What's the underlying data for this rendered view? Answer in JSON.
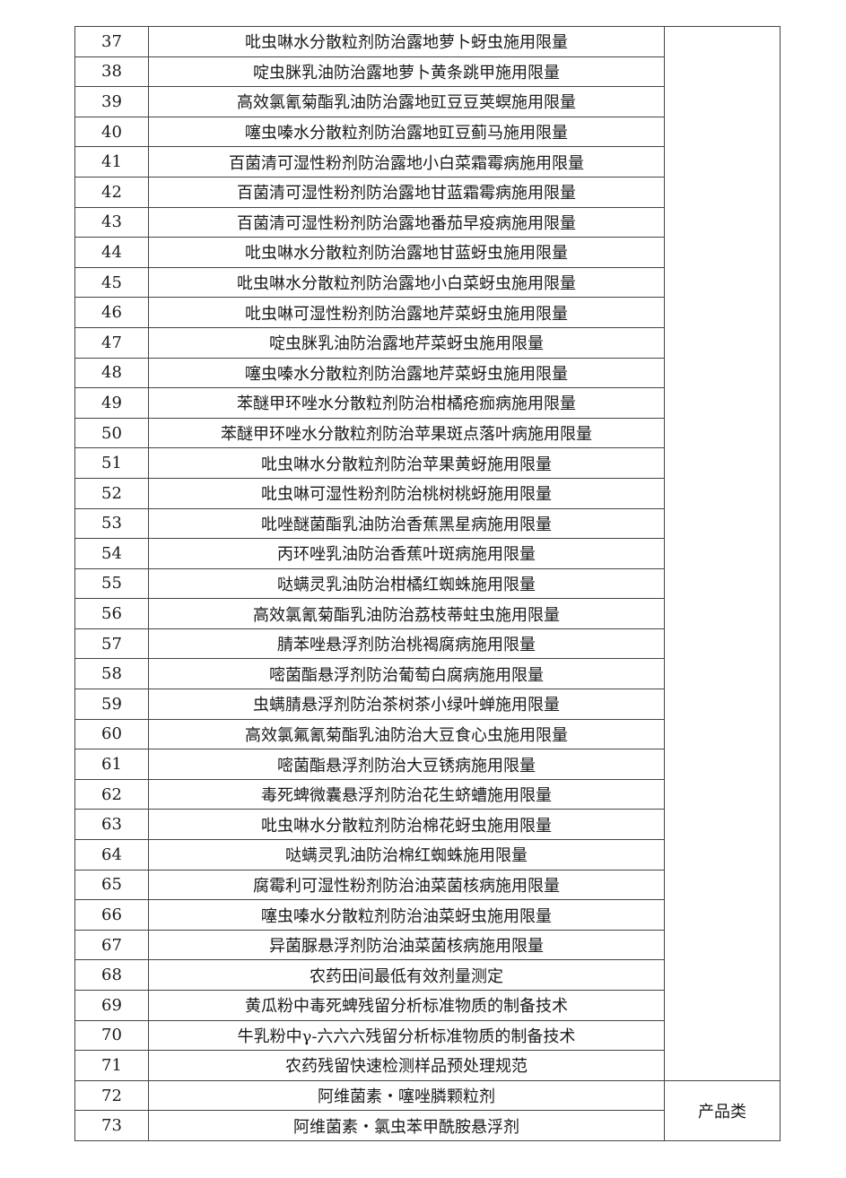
{
  "rows": [
    {
      "no": "37",
      "name": "吡虫啉水分散粒剂防治露地萝卜蚜虫施用限量"
    },
    {
      "no": "38",
      "name": "啶虫脒乳油防治露地萝卜黄条跳甲施用限量"
    },
    {
      "no": "39",
      "name": "高效氯氰菊酯乳油防治露地豇豆豆荚螟施用限量"
    },
    {
      "no": "40",
      "name": "噻虫嗪水分散粒剂防治露地豇豆蓟马施用限量"
    },
    {
      "no": "41",
      "name": "百菌清可湿性粉剂防治露地小白菜霜霉病施用限量"
    },
    {
      "no": "42",
      "name": "百菌清可湿性粉剂防治露地甘蓝霜霉病施用限量"
    },
    {
      "no": "43",
      "name": "百菌清可湿性粉剂防治露地番茄早疫病施用限量"
    },
    {
      "no": "44",
      "name": "吡虫啉水分散粒剂防治露地甘蓝蚜虫施用限量"
    },
    {
      "no": "45",
      "name": "吡虫啉水分散粒剂防治露地小白菜蚜虫施用限量"
    },
    {
      "no": "46",
      "name": "吡虫啉可湿性粉剂防治露地芹菜蚜虫施用限量"
    },
    {
      "no": "47",
      "name": "啶虫脒乳油防治露地芹菜蚜虫施用限量"
    },
    {
      "no": "48",
      "name": "噻虫嗪水分散粒剂防治露地芹菜蚜虫施用限量"
    },
    {
      "no": "49",
      "name": "苯醚甲环唑水分散粒剂防治柑橘疮痂病施用限量"
    },
    {
      "no": "50",
      "name": "苯醚甲环唑水分散粒剂防治苹果斑点落叶病施用限量"
    },
    {
      "no": "51",
      "name": "吡虫啉水分散粒剂防治苹果黄蚜施用限量"
    },
    {
      "no": "52",
      "name": "吡虫啉可湿性粉剂防治桃树桃蚜施用限量"
    },
    {
      "no": "53",
      "name": "吡唑醚菌酯乳油防治香蕉黑星病施用限量"
    },
    {
      "no": "54",
      "name": "丙环唑乳油防治香蕉叶斑病施用限量"
    },
    {
      "no": "55",
      "name": "哒螨灵乳油防治柑橘红蜘蛛施用限量"
    },
    {
      "no": "56",
      "name": "高效氯氰菊酯乳油防治荔枝蒂蛀虫施用限量"
    },
    {
      "no": "57",
      "name": "腈苯唑悬浮剂防治桃褐腐病施用限量"
    },
    {
      "no": "58",
      "name": "嘧菌酯悬浮剂防治葡萄白腐病施用限量"
    },
    {
      "no": "59",
      "name": "虫螨腈悬浮剂防治茶树茶小绿叶蝉施用限量"
    },
    {
      "no": "60",
      "name": "高效氯氟氰菊酯乳油防治大豆食心虫施用限量"
    },
    {
      "no": "61",
      "name": "嘧菌酯悬浮剂防治大豆锈病施用限量"
    },
    {
      "no": "62",
      "name": "毒死蜱微囊悬浮剂防治花生蛴螬施用限量"
    },
    {
      "no": "63",
      "name": "吡虫啉水分散粒剂防治棉花蚜虫施用限量"
    },
    {
      "no": "64",
      "name": "哒螨灵乳油防治棉红蜘蛛施用限量"
    },
    {
      "no": "65",
      "name": "腐霉利可湿性粉剂防治油菜菌核病施用限量"
    },
    {
      "no": "66",
      "name": "噻虫嗪水分散粒剂防治油菜蚜虫施用限量"
    },
    {
      "no": "67",
      "name": "异菌脲悬浮剂防治油菜菌核病施用限量"
    },
    {
      "no": "68",
      "name": "农药田间最低有效剂量测定"
    },
    {
      "no": "69",
      "name": "黄瓜粉中毒死蜱残留分析标准物质的制备技术"
    },
    {
      "no": "70",
      "name": "牛乳粉中γ-六六六残留分析标准物质的制备技术"
    },
    {
      "no": "71",
      "name": "农药残留快速检测样品预处理规范"
    },
    {
      "no": "72",
      "name": "阿维菌素・噻唑膦颗粒剂"
    },
    {
      "no": "73",
      "name": "阿维菌素・氯虫苯甲酰胺悬浮剂"
    }
  ],
  "categories": [
    {
      "label": "",
      "span": 35
    },
    {
      "label": "产品类",
      "span": 2
    }
  ]
}
